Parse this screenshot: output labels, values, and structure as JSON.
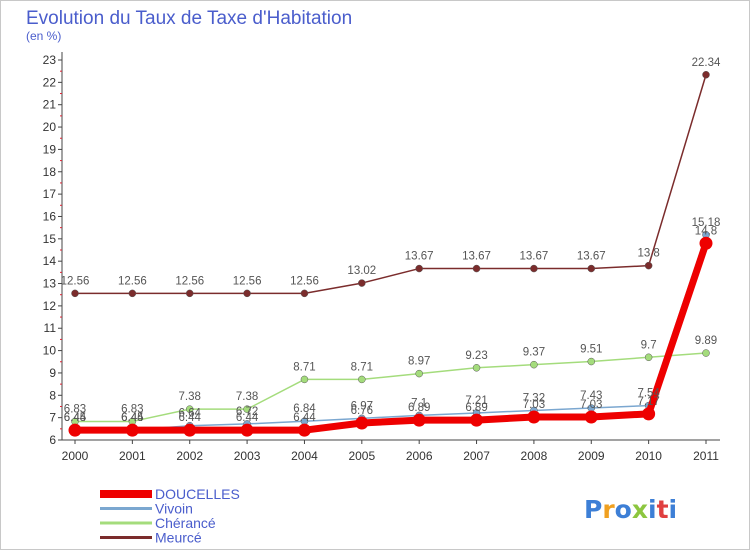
{
  "chart_data": {
    "type": "line",
    "title": "Evolution du Taux de Taxe d'Habitation",
    "subtitle": "(en %)",
    "xlabel": "",
    "ylabel": "",
    "x": [
      "2000",
      "2001",
      "2002",
      "2003",
      "2004",
      "2005",
      "2006",
      "2007",
      "2008",
      "2009",
      "2010",
      "2011"
    ],
    "y_ticks": [
      "6",
      "7",
      "8",
      "9",
      "10",
      "11",
      "12",
      "13",
      "14",
      "15",
      "16",
      "17",
      "18",
      "19",
      "20",
      "21",
      "22",
      "23"
    ],
    "ylim": [
      6,
      23
    ],
    "grid": false,
    "legend_position": "bottom-left",
    "series": [
      {
        "name": "Meurcé",
        "color": "#7b2c2c",
        "values": [
          12.56,
          12.56,
          12.56,
          12.56,
          12.56,
          13.02,
          13.67,
          13.67,
          13.67,
          13.67,
          13.8,
          22.34
        ],
        "labels": [
          "12.56",
          "12.56",
          "12.56",
          "12.56",
          "12.56",
          "13.02",
          "13.67",
          "13.67",
          "13.67",
          "13.67",
          "13.8",
          "22.34"
        ]
      },
      {
        "name": "Chérancé",
        "color": "#a4dc7c",
        "values": [
          6.83,
          6.83,
          7.38,
          7.38,
          8.71,
          8.71,
          8.97,
          9.23,
          9.37,
          9.51,
          9.7,
          9.89
        ],
        "labels": [
          "6.83",
          "6.83",
          "7.38",
          "7.38",
          "8.71",
          "8.71",
          "8.97",
          "9.23",
          "9.37",
          "9.51",
          "9.7",
          "9.89"
        ]
      },
      {
        "name": "Vivoin",
        "color": "#7ba7d0",
        "values": [
          6.45,
          6.45,
          6.64,
          6.72,
          6.84,
          6.97,
          7.1,
          7.21,
          7.32,
          7.43,
          7.54,
          15.18
        ],
        "labels": [
          "6.45",
          "6.45",
          "6.64",
          "6.72",
          "6.84",
          "6.97",
          "7.1",
          "7.21",
          "7.32",
          "7.43",
          "7.54",
          "15.18"
        ]
      },
      {
        "name": "DOUCELLES",
        "color": "#ee0000",
        "values": [
          6.44,
          6.44,
          6.44,
          6.44,
          6.44,
          6.76,
          6.89,
          6.89,
          7.03,
          7.03,
          7.17,
          14.8
        ],
        "labels": [
          "6.44",
          "6.44",
          "6.44",
          "6.44",
          "6.44",
          "6.76",
          "6.89",
          "6.89",
          "7.03",
          "7.03",
          "7.17",
          "14.8"
        ]
      }
    ],
    "legend": [
      "DOUCELLES",
      "Vivoin",
      "Chérancé",
      "Meurcé"
    ]
  },
  "branding": {
    "logo_text": "Proxiti",
    "logo_colors": [
      "#3d7fd6",
      "#f0a020",
      "#3d7fd6",
      "#8cc63f",
      "#3d7fd6",
      "#e04040",
      "#3d7fd6"
    ]
  }
}
